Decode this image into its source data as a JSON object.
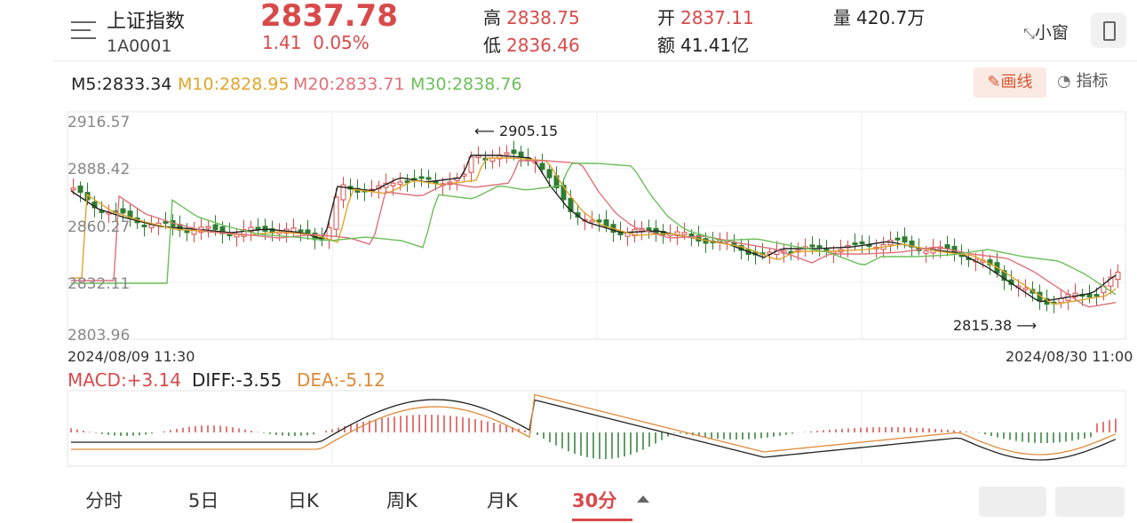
{
  "header": {
    "name": "上证指数",
    "code": "1A0001",
    "price": "2837.78",
    "change": "1.41",
    "change_pct": "0.05%",
    "high_label": "高",
    "high": "2838.75",
    "low_label": "低",
    "low": "2836.46",
    "open_label": "开",
    "open": "2837.11",
    "amount_label": "额",
    "amount": "41.41亿",
    "volume_label": "量",
    "volume": "420.7万",
    "small_window": "小窗"
  },
  "ma": {
    "m5": "M5:2833.34",
    "m10": "M10:2828.95",
    "m20": "M20:2833.71",
    "m30": "M30:2838.76",
    "colors": {
      "m5": "#222222",
      "m10": "#e0a52a",
      "m20": "#e0707a",
      "m30": "#6bbf59"
    }
  },
  "toolbar": {
    "draw": "画线",
    "indicator": "指标"
  },
  "chart": {
    "y_ticks": [
      "2916.57",
      "2888.42",
      "2860.27",
      "2832.11",
      "2803.96"
    ],
    "start_date": "2024/08/09 11:30",
    "end_date": "2024/08/30 11:00",
    "high_annotation": "2905.15",
    "low_annotation": "2815.38",
    "up_color": "#d94a4a",
    "down_color": "#2f7d32"
  },
  "macd": {
    "macd": "MACD:+3.14",
    "diff": "DIFF:-3.55",
    "dea": "DEA:-5.12"
  },
  "tabs": [
    "分时",
    "5日",
    "日K",
    "周K",
    "月K",
    "30分"
  ],
  "active_tab": "30分"
}
